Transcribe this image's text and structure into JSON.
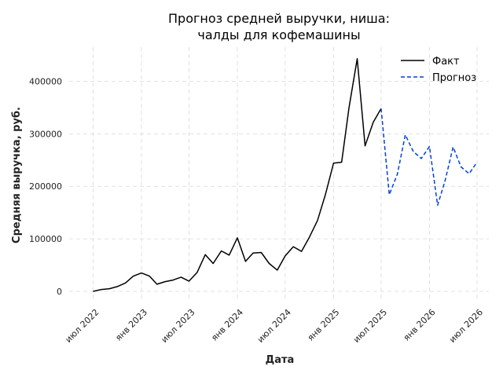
{
  "chart_data": {
    "type": "line",
    "title_lines": [
      "Прогноз средней выручки, ниша:",
      "чалды для кофемашины"
    ],
    "xlabel": "Дата",
    "ylabel": "Средняя выручка, руб.",
    "xlim": [
      "2022-04-01",
      "2026-08-15"
    ],
    "ylim": [
      -18000,
      465000
    ],
    "yticks": [
      0,
      100000,
      200000,
      300000,
      400000
    ],
    "xticks": [
      {
        "date": "2022-07-01",
        "label": "июл 2022"
      },
      {
        "date": "2023-01-01",
        "label": "янв 2023"
      },
      {
        "date": "2023-07-01",
        "label": "июл 2023"
      },
      {
        "date": "2024-01-01",
        "label": "янв 2024"
      },
      {
        "date": "2024-07-01",
        "label": "июл 2024"
      },
      {
        "date": "2025-01-01",
        "label": "янв 2025"
      },
      {
        "date": "2025-07-01",
        "label": "июл 2025"
      },
      {
        "date": "2026-01-01",
        "label": "янв 2026"
      },
      {
        "date": "2026-07-01",
        "label": "июл 2026"
      }
    ],
    "grid": true,
    "legend_position": "top-right",
    "series": [
      {
        "name": "Факт",
        "color": "#000000",
        "style": "solid",
        "x": [
          "2022-07-01",
          "2022-08-01",
          "2022-09-01",
          "2022-10-01",
          "2022-11-01",
          "2022-12-01",
          "2023-01-01",
          "2023-02-01",
          "2023-03-01",
          "2023-04-01",
          "2023-05-01",
          "2023-06-01",
          "2023-07-01",
          "2023-08-01",
          "2023-09-01",
          "2023-10-01",
          "2023-11-01",
          "2023-12-01",
          "2024-01-01",
          "2024-02-01",
          "2024-03-01",
          "2024-04-01",
          "2024-05-01",
          "2024-06-01",
          "2024-07-01",
          "2024-08-01",
          "2024-09-01",
          "2024-10-01",
          "2024-11-01",
          "2024-12-01",
          "2025-01-01",
          "2025-02-01",
          "2025-03-01",
          "2025-04-01",
          "2025-05-01",
          "2025-06-01",
          "2025-07-01"
        ],
        "y": [
          0,
          3500,
          5000,
          9000,
          16000,
          29000,
          35000,
          29000,
          13500,
          18500,
          21500,
          27000,
          19500,
          36000,
          70000,
          53000,
          77000,
          69000,
          102000,
          57000,
          73000,
          74000,
          53000,
          40500,
          67500,
          85000,
          76000,
          103000,
          135000,
          184000,
          244000,
          246000,
          350000,
          443000,
          277000,
          322000,
          348000
        ]
      },
      {
        "name": "Прогноз",
        "color": "#0041d6",
        "style": "dashed",
        "x": [
          "2025-07-01",
          "2025-08-01",
          "2025-09-01",
          "2025-10-01",
          "2025-11-01",
          "2025-12-01",
          "2026-01-01",
          "2026-02-01",
          "2026-03-01",
          "2026-04-01",
          "2026-05-01",
          "2026-06-01",
          "2026-07-01"
        ],
        "y": [
          348000,
          184000,
          223000,
          298000,
          266000,
          253000,
          276000,
          164000,
          210000,
          275000,
          237000,
          224000,
          246000
        ]
      }
    ]
  }
}
